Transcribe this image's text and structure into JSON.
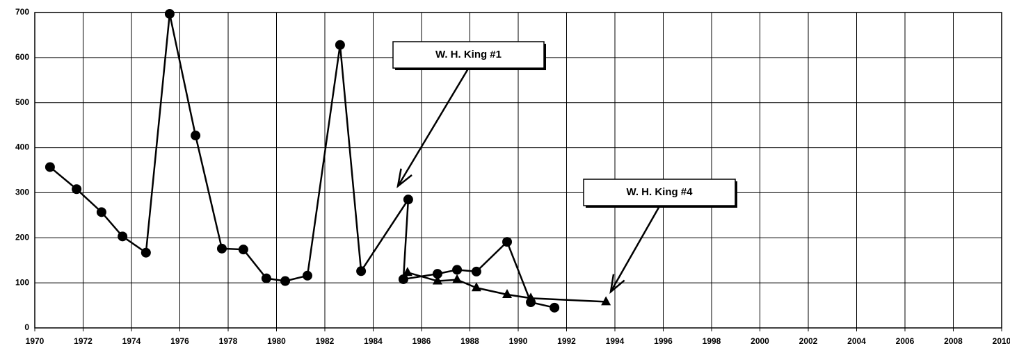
{
  "chart_data": {
    "type": "line",
    "xlim": [
      1970,
      2010
    ],
    "xticks": [
      1970,
      1972,
      1974,
      1976,
      1978,
      1980,
      1982,
      1984,
      1986,
      1988,
      1990,
      1992,
      1994,
      1996,
      1998,
      2000,
      2002,
      2004,
      2006,
      2008,
      2010
    ],
    "ylim": [
      0,
      700
    ],
    "yticks": [
      0,
      100,
      200,
      300,
      400,
      500,
      600,
      700
    ],
    "grid": true,
    "series": [
      {
        "color": "#000000",
        "marker": "circle",
        "x": [
          1970.63,
          1971.73,
          1972.76,
          1973.63,
          1974.6,
          1975.58,
          1976.65,
          1977.74,
          1978.63,
          1979.58,
          1980.36,
          1981.28,
          1982.63,
          1983.5,
          1985.45,
          1985.25,
          1986.66,
          1987.47,
          1988.27,
          1989.54,
          1990.52,
          1991.5
        ],
        "values": [
          357,
          308,
          257,
          203,
          167,
          697,
          427,
          176,
          174,
          110,
          104,
          116,
          628,
          126,
          285,
          108,
          120,
          129,
          125,
          191,
          57,
          45
        ]
      },
      {
        "color": "#000000",
        "marker": "triangle",
        "x": [
          1985.42,
          1986.66,
          1987.47,
          1988.27,
          1989.54,
          1990.52,
          1993.63
        ],
        "values": [
          123,
          104,
          107,
          89,
          74,
          66,
          58
        ]
      }
    ],
    "annotations": [
      "W. H. King #1",
      "W. H. King #4"
    ]
  }
}
